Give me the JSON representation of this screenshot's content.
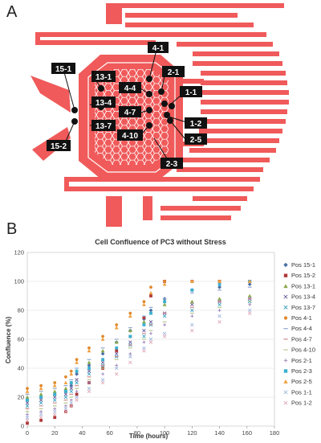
{
  "panel_a": {
    "letter": "A",
    "chip_color": "#f05a5a",
    "labels": [
      {
        "id": "label-15-1",
        "text": "15-1"
      },
      {
        "id": "label-15-2",
        "text": "15-2"
      },
      {
        "id": "label-13-1",
        "text": "13-1"
      },
      {
        "id": "label-13-4",
        "text": "13-4"
      },
      {
        "id": "label-13-7",
        "text": "13-7"
      },
      {
        "id": "label-4-1",
        "text": "4-1"
      },
      {
        "id": "label-4-4",
        "text": "4-4"
      },
      {
        "id": "label-4-7",
        "text": "4-7"
      },
      {
        "id": "label-4-10",
        "text": "4-10"
      },
      {
        "id": "label-2-1",
        "text": "2-1"
      },
      {
        "id": "label-2-3",
        "text": "2-3"
      },
      {
        "id": "label-2-5",
        "text": "2-5"
      },
      {
        "id": "label-1-1",
        "text": "1-1"
      },
      {
        "id": "label-1-2",
        "text": "1-2"
      }
    ]
  },
  "panel_b": {
    "letter": "B"
  },
  "chart_data": {
    "type": "scatter",
    "title": "Cell Confluence of PC3 without Stress",
    "xlabel": "Time (hours)",
    "ylabel": "Confluence (%)",
    "xlim": [
      0,
      180
    ],
    "ylim": [
      0,
      120
    ],
    "xticks": [
      0,
      20,
      40,
      60,
      80,
      100,
      120,
      140,
      160,
      180
    ],
    "yticks": [
      0,
      20,
      40,
      60,
      80,
      100,
      120
    ],
    "grid": true,
    "legend_position": "right",
    "series": [
      {
        "name": "Pos 15-1",
        "color": "#4a6fa5",
        "marker": "diamond",
        "points": [
          [
            0,
            18
          ],
          [
            10,
            20
          ],
          [
            20,
            22
          ],
          [
            28,
            24
          ],
          [
            32,
            28
          ],
          [
            36,
            36
          ],
          [
            45,
            42
          ],
          [
            55,
            50
          ],
          [
            65,
            58
          ],
          [
            75,
            66
          ],
          [
            85,
            74
          ],
          [
            90,
            80
          ],
          [
            100,
            88
          ],
          [
            120,
            94
          ],
          [
            140,
            96
          ],
          [
            162,
            98
          ]
        ]
      },
      {
        "name": "Pos 15-2",
        "color": "#b03a3a",
        "marker": "square",
        "points": [
          [
            0,
            2
          ],
          [
            10,
            4
          ],
          [
            20,
            6
          ],
          [
            28,
            10
          ],
          [
            32,
            14
          ],
          [
            36,
            22
          ],
          [
            45,
            30
          ],
          [
            55,
            40
          ],
          [
            65,
            52
          ],
          [
            75,
            62
          ],
          [
            85,
            75
          ],
          [
            90,
            90
          ],
          [
            100,
            100
          ],
          [
            120,
            100
          ],
          [
            140,
            100
          ],
          [
            162,
            100
          ]
        ]
      },
      {
        "name": "Pos 13-1",
        "color": "#8aa84a",
        "marker": "triangle",
        "points": [
          [
            0,
            20
          ],
          [
            10,
            22
          ],
          [
            20,
            24
          ],
          [
            28,
            26
          ],
          [
            32,
            30
          ],
          [
            36,
            38
          ],
          [
            45,
            44
          ],
          [
            55,
            52
          ],
          [
            65,
            58
          ],
          [
            75,
            66
          ],
          [
            85,
            72
          ],
          [
            90,
            78
          ],
          [
            100,
            84
          ],
          [
            120,
            86
          ],
          [
            140,
            88
          ],
          [
            162,
            90
          ]
        ]
      },
      {
        "name": "Pos 13-4",
        "color": "#6a5a9a",
        "marker": "x",
        "points": [
          [
            0,
            16
          ],
          [
            10,
            18
          ],
          [
            20,
            20
          ],
          [
            28,
            22
          ],
          [
            32,
            26
          ],
          [
            36,
            32
          ],
          [
            45,
            38
          ],
          [
            55,
            44
          ],
          [
            65,
            50
          ],
          [
            75,
            58
          ],
          [
            85,
            66
          ],
          [
            90,
            72
          ],
          [
            100,
            78
          ],
          [
            120,
            84
          ],
          [
            140,
            86
          ],
          [
            162,
            88
          ]
        ]
      },
      {
        "name": "Pos 13-7",
        "color": "#3aa0c0",
        "marker": "x",
        "points": [
          [
            0,
            14
          ],
          [
            10,
            16
          ],
          [
            20,
            18
          ],
          [
            28,
            20
          ],
          [
            32,
            24
          ],
          [
            36,
            30
          ],
          [
            45,
            36
          ],
          [
            55,
            42
          ],
          [
            65,
            48
          ],
          [
            75,
            56
          ],
          [
            85,
            62
          ],
          [
            90,
            70
          ],
          [
            100,
            76
          ],
          [
            120,
            80
          ],
          [
            140,
            84
          ],
          [
            162,
            86
          ]
        ]
      },
      {
        "name": "Pos 4-1",
        "color": "#e08a30",
        "marker": "circle",
        "points": [
          [
            0,
            26
          ],
          [
            10,
            28
          ],
          [
            20,
            30
          ],
          [
            28,
            34
          ],
          [
            32,
            38
          ],
          [
            36,
            46
          ],
          [
            45,
            54
          ],
          [
            55,
            62
          ],
          [
            65,
            70
          ],
          [
            75,
            78
          ],
          [
            85,
            86
          ],
          [
            90,
            96
          ],
          [
            100,
            100
          ],
          [
            120,
            100
          ],
          [
            140,
            100
          ],
          [
            162,
            100
          ]
        ]
      },
      {
        "name": "Pos 4-4",
        "color": "#8fa7d0",
        "marker": "dash",
        "points": [
          [
            0,
            22
          ],
          [
            10,
            24
          ],
          [
            20,
            26
          ],
          [
            28,
            28
          ],
          [
            32,
            32
          ],
          [
            36,
            40
          ],
          [
            45,
            46
          ],
          [
            55,
            54
          ],
          [
            65,
            60
          ],
          [
            75,
            68
          ],
          [
            85,
            76
          ],
          [
            90,
            82
          ],
          [
            100,
            88
          ],
          [
            120,
            92
          ],
          [
            140,
            94
          ],
          [
            162,
            96
          ]
        ]
      },
      {
        "name": "Pos 4-7",
        "color": "#d08a8a",
        "marker": "dash",
        "points": [
          [
            0,
            12
          ],
          [
            10,
            14
          ],
          [
            20,
            16
          ],
          [
            28,
            18
          ],
          [
            32,
            22
          ],
          [
            36,
            28
          ],
          [
            45,
            34
          ],
          [
            55,
            42
          ],
          [
            65,
            48
          ],
          [
            75,
            56
          ],
          [
            85,
            64
          ],
          [
            90,
            70
          ],
          [
            100,
            78
          ],
          [
            120,
            82
          ],
          [
            140,
            86
          ],
          [
            162,
            88
          ]
        ]
      },
      {
        "name": "Pos 4-10",
        "color": "#b8c890",
        "marker": "dash",
        "points": [
          [
            0,
            10
          ],
          [
            10,
            12
          ],
          [
            20,
            14
          ],
          [
            28,
            16
          ],
          [
            32,
            20
          ],
          [
            36,
            26
          ],
          [
            45,
            32
          ],
          [
            55,
            40
          ],
          [
            65,
            46
          ],
          [
            75,
            54
          ],
          [
            85,
            60
          ],
          [
            90,
            66
          ],
          [
            100,
            72
          ],
          [
            120,
            78
          ],
          [
            140,
            82
          ],
          [
            162,
            86
          ]
        ]
      },
      {
        "name": "Pos 2-1",
        "color": "#9a80b8",
        "marker": "plus",
        "points": [
          [
            0,
            8
          ],
          [
            10,
            10
          ],
          [
            20,
            12
          ],
          [
            28,
            14
          ],
          [
            32,
            18
          ],
          [
            36,
            24
          ],
          [
            45,
            30
          ],
          [
            55,
            36
          ],
          [
            65,
            42
          ],
          [
            75,
            50
          ],
          [
            85,
            58
          ],
          [
            90,
            64
          ],
          [
            100,
            70
          ],
          [
            120,
            76
          ],
          [
            140,
            80
          ],
          [
            162,
            84
          ]
        ]
      },
      {
        "name": "Pos 2-3",
        "color": "#3ab0d0",
        "marker": "square",
        "points": [
          [
            0,
            18
          ],
          [
            10,
            20
          ],
          [
            20,
            22
          ],
          [
            28,
            24
          ],
          [
            32,
            30
          ],
          [
            36,
            38
          ],
          [
            45,
            40
          ],
          [
            55,
            46
          ],
          [
            65,
            54
          ],
          [
            75,
            62
          ],
          [
            85,
            70
          ],
          [
            90,
            78
          ],
          [
            100,
            86
          ],
          [
            120,
            94
          ],
          [
            140,
            98
          ],
          [
            162,
            100
          ]
        ]
      },
      {
        "name": "Pos 2-5",
        "color": "#f0a040",
        "marker": "triangle",
        "points": [
          [
            0,
            24
          ],
          [
            10,
            26
          ],
          [
            20,
            28
          ],
          [
            28,
            30
          ],
          [
            32,
            36
          ],
          [
            36,
            44
          ],
          [
            45,
            52
          ],
          [
            55,
            60
          ],
          [
            65,
            68
          ],
          [
            75,
            76
          ],
          [
            85,
            84
          ],
          [
            90,
            92
          ],
          [
            100,
            98
          ],
          [
            120,
            100
          ],
          [
            140,
            100
          ],
          [
            162,
            100
          ]
        ]
      },
      {
        "name": "Pos 1-1",
        "color": "#a0b8e0",
        "marker": "x",
        "points": [
          [
            0,
            6
          ],
          [
            10,
            8
          ],
          [
            20,
            10
          ],
          [
            28,
            12
          ],
          [
            32,
            16
          ],
          [
            36,
            20
          ],
          [
            45,
            26
          ],
          [
            55,
            32
          ],
          [
            65,
            40
          ],
          [
            75,
            48
          ],
          [
            85,
            54
          ],
          [
            90,
            60
          ],
          [
            100,
            64
          ],
          [
            120,
            70
          ],
          [
            140,
            76
          ],
          [
            162,
            80
          ]
        ]
      },
      {
        "name": "Pos 1-2",
        "color": "#e0a8b8",
        "marker": "x",
        "points": [
          [
            0,
            4
          ],
          [
            10,
            6
          ],
          [
            20,
            8
          ],
          [
            28,
            10
          ],
          [
            32,
            14
          ],
          [
            36,
            18
          ],
          [
            45,
            24
          ],
          [
            55,
            30
          ],
          [
            65,
            36
          ],
          [
            75,
            44
          ],
          [
            85,
            52
          ],
          [
            90,
            58
          ],
          [
            100,
            62
          ],
          [
            120,
            66
          ],
          [
            140,
            72
          ],
          [
            162,
            78
          ]
        ]
      }
    ]
  }
}
